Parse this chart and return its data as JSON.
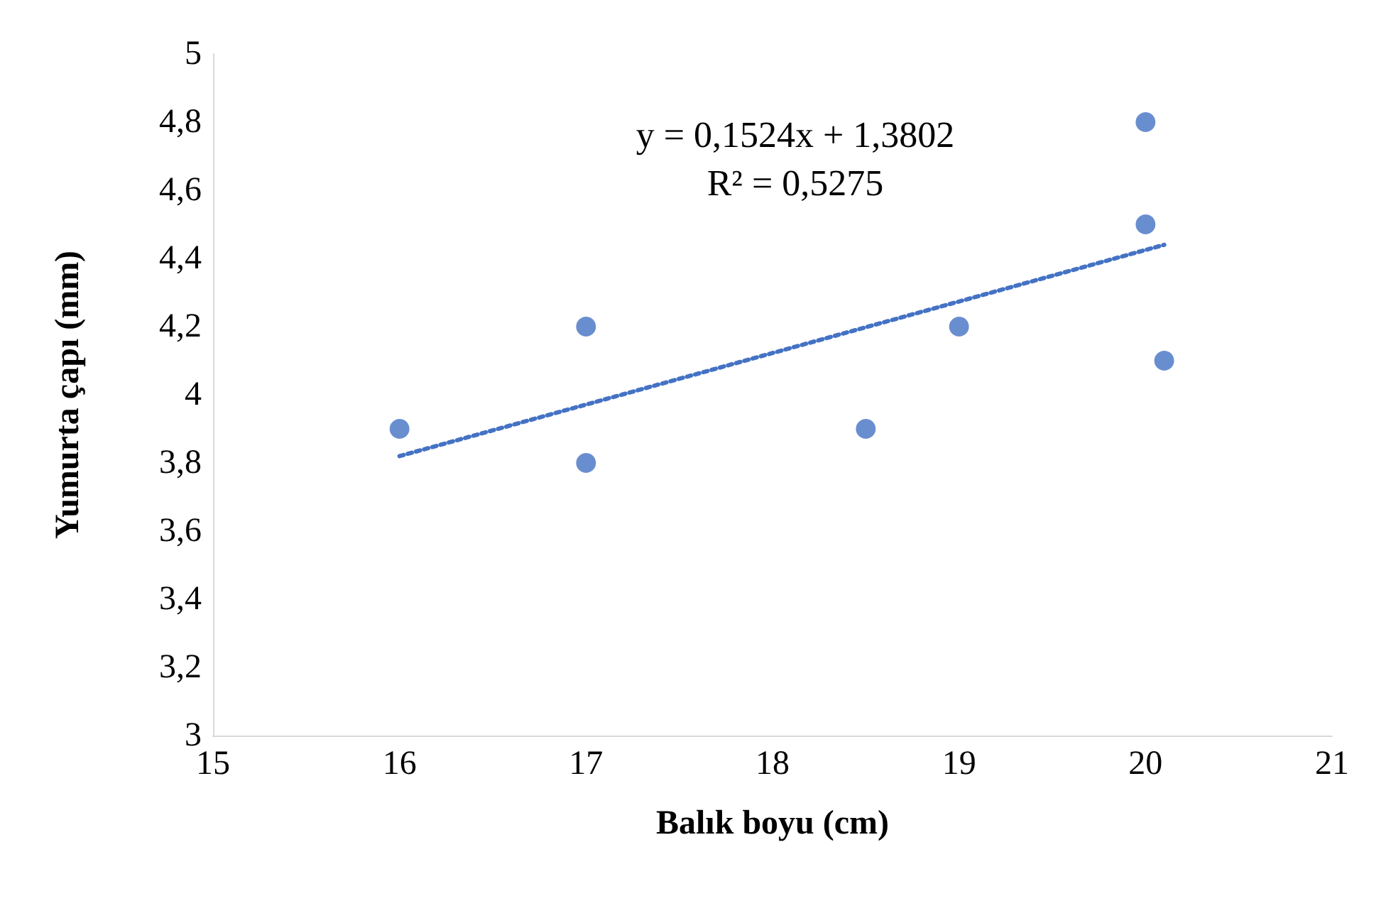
{
  "chart_data": {
    "type": "scatter",
    "xlabel": "Balık boyu (cm)",
    "ylabel": "Yumurta çapı (mm)",
    "annotations": [
      "y = 0,1524x + 1,3802",
      "R² = 0,5275"
    ],
    "xlim": [
      15,
      21
    ],
    "xticks": [
      15,
      16,
      17,
      18,
      19,
      20,
      21
    ],
    "ylim": [
      3,
      5
    ],
    "yticks": [
      3,
      {
        "value": 3.2,
        "label": "3,2"
      },
      {
        "value": 3.4,
        "label": "3,4"
      },
      {
        "value": 3.6,
        "label": "3,6"
      },
      {
        "value": 3.8,
        "label": "3,8"
      },
      4,
      {
        "value": 4.2,
        "label": "4,2"
      },
      {
        "value": 4.4,
        "label": "4,4"
      },
      {
        "value": 4.6,
        "label": "4,6"
      },
      {
        "value": 4.8,
        "label": "4,8"
      },
      5
    ],
    "grid": false,
    "marker": "circle",
    "series": [
      {
        "color": "#4472c4",
        "x": [
          16,
          17,
          17,
          18.5,
          19,
          20,
          20,
          20.1
        ],
        "values": [
          3.9,
          4.2,
          3.8,
          3.9,
          4.2,
          4.8,
          4.5,
          4.1
        ]
      },
      {
        "type": "line",
        "marker": "none",
        "color": "#4472c4",
        "line_style": "dotted",
        "x": [
          16,
          20.1
        ],
        "values": [
          3.82,
          4.44
        ]
      }
    ]
  }
}
